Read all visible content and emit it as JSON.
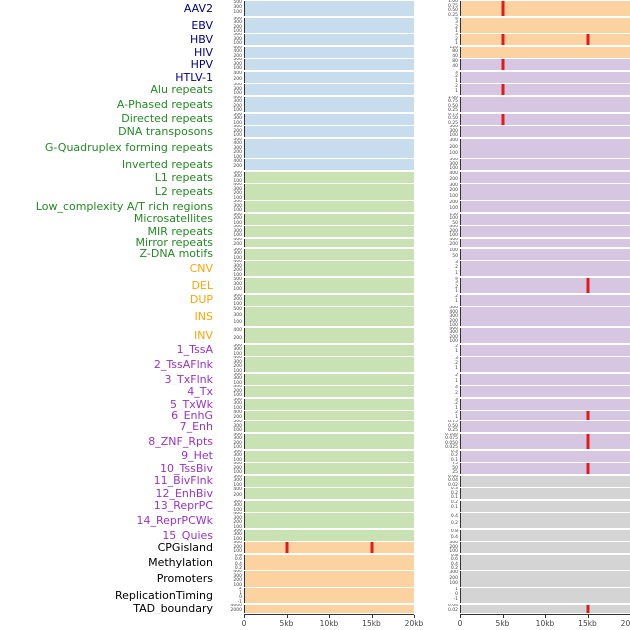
{
  "colors": {
    "label": {
      "virus": "#00008B",
      "repeat": "#228B22",
      "sv": "#FFA500",
      "chromatin": "#9932CC",
      "other": "#000000"
    },
    "fill": {
      "blue": "#c7dcec",
      "green": "#c9e2b3",
      "orange": "#fcd2a1",
      "purple": "#d6c6e1",
      "gray": "#d4d4d4"
    },
    "marker": "#e31a1c"
  },
  "chart_data": {
    "type": "area",
    "title": "",
    "xlabel": "",
    "x_range_kb": [
      0,
      20
    ],
    "x_tick_labels": [
      "0",
      "5kb",
      "10kb",
      "15kb",
      "20kb"
    ],
    "legend": "none",
    "tracks": [
      {
        "label": "AAV2",
        "group": "virus",
        "left": {
          "fill": "blue",
          "yticks": [
            "500",
            "300",
            "100"
          ],
          "markers_kb": []
        },
        "right": {
          "fill": "orange",
          "yticks": [
            "1.00",
            "0.75",
            "0.50",
            "0.25"
          ],
          "markers_kb": [
            5
          ]
        }
      },
      {
        "label": "EBV",
        "group": "virus",
        "left": {
          "fill": "blue",
          "yticks": [
            "400",
            "300",
            "200",
            "100"
          ],
          "markers_kb": []
        },
        "right": {
          "fill": "orange",
          "yticks": [
            "4",
            "3",
            "2",
            "1"
          ],
          "markers_kb": []
        }
      },
      {
        "label": "HBV",
        "group": "virus",
        "left": {
          "fill": "blue",
          "yticks": [
            "500",
            "300",
            "100"
          ],
          "markers_kb": []
        },
        "right": {
          "fill": "orange",
          "yticks": [
            "3",
            "2",
            "1"
          ],
          "markers_kb": [
            5,
            15
          ]
        }
      },
      {
        "label": "HIV",
        "group": "virus",
        "left": {
          "fill": "blue",
          "yticks": [
            "600",
            "400",
            "200"
          ],
          "markers_kb": []
        },
        "right": {
          "fill": "orange",
          "yticks": [
            "120",
            "80",
            "40"
          ],
          "markers_kb": []
        }
      },
      {
        "label": "HPV",
        "group": "virus",
        "left": {
          "fill": "blue",
          "yticks": [
            "500",
            "300",
            "100"
          ],
          "markers_kb": []
        },
        "right": {
          "fill": "purple",
          "yticks": [
            "80",
            "40"
          ],
          "markers_kb": [
            5
          ]
        }
      },
      {
        "label": "HTLV-1",
        "group": "virus",
        "left": {
          "fill": "blue",
          "yticks": [
            "400",
            "200"
          ],
          "markers_kb": []
        },
        "right": {
          "fill": "purple",
          "yticks": [
            "3",
            "2",
            "1"
          ],
          "markers_kb": []
        }
      },
      {
        "label": "Alu repeats",
        "group": "repeat",
        "left": {
          "fill": "blue",
          "yticks": [
            "500",
            "300",
            "100"
          ],
          "markers_kb": []
        },
        "right": {
          "fill": "purple",
          "yticks": [
            "2",
            "1"
          ],
          "markers_kb": [
            5
          ]
        }
      },
      {
        "label": "A-Phased repeats",
        "group": "repeat",
        "left": {
          "fill": "blue",
          "yticks": [
            "400",
            "300",
            "200",
            "100"
          ],
          "markers_kb": []
        },
        "right": {
          "fill": "purple",
          "yticks": [
            "1.00",
            "0.75",
            "0.50",
            "0.25"
          ],
          "markers_kb": []
        }
      },
      {
        "label": "Directed repeats",
        "group": "repeat",
        "left": {
          "fill": "blue",
          "yticks": [
            "500",
            "300",
            "100"
          ],
          "markers_kb": []
        },
        "right": {
          "fill": "purple",
          "yticks": [
            "0.75",
            "0.50",
            "0.25"
          ],
          "markers_kb": [
            5
          ]
        }
      },
      {
        "label": "DNA transposons",
        "group": "repeat",
        "left": {
          "fill": "blue",
          "yticks": [
            "300",
            "200",
            "100"
          ],
          "markers_kb": []
        },
        "right": {
          "fill": "purple",
          "yticks": [
            "500",
            "300",
            "100"
          ],
          "markers_kb": []
        }
      },
      {
        "label": "G-Quadruplex forming repeats",
        "group": "repeat",
        "left": {
          "fill": "blue",
          "yticks": [
            "500",
            "400",
            "300",
            "200",
            "100"
          ],
          "markers_kb": []
        },
        "right": {
          "fill": "purple",
          "yticks": [
            "300",
            "200",
            "100"
          ],
          "markers_kb": []
        }
      },
      {
        "label": "Inverted repeats",
        "group": "repeat",
        "left": {
          "fill": "blue",
          "yticks": [
            "400",
            "200"
          ],
          "markers_kb": []
        },
        "right": {
          "fill": "purple",
          "yticks": [
            "500",
            "300",
            "100"
          ],
          "markers_kb": []
        }
      },
      {
        "label": "L1 repeats",
        "group": "repeat",
        "left": {
          "fill": "green",
          "yticks": [
            "500",
            "300",
            "100"
          ],
          "markers_kb": []
        },
        "right": {
          "fill": "purple",
          "yticks": [
            "400",
            "200"
          ],
          "markers_kb": []
        }
      },
      {
        "label": "L2 repeats",
        "group": "repeat",
        "left": {
          "fill": "green",
          "yticks": [
            "400",
            "300",
            "200",
            "100"
          ],
          "markers_kb": []
        },
        "right": {
          "fill": "purple",
          "yticks": [
            "300",
            "200",
            "100"
          ],
          "markers_kb": []
        }
      },
      {
        "label": "Low_complexity A/T rich regions",
        "group": "repeat",
        "left": {
          "fill": "green",
          "yticks": [
            "500",
            "300",
            "100"
          ],
          "markers_kb": []
        },
        "right": {
          "fill": "purple",
          "yticks": [
            "200",
            "100"
          ],
          "markers_kb": []
        }
      },
      {
        "label": "Microsatellites",
        "group": "repeat",
        "left": {
          "fill": "green",
          "yticks": [
            "300",
            "200",
            "100"
          ],
          "markers_kb": []
        },
        "right": {
          "fill": "purple",
          "yticks": [
            "150",
            "100",
            "50"
          ],
          "markers_kb": []
        }
      },
      {
        "label": "MIR repeats",
        "group": "repeat",
        "left": {
          "fill": "green",
          "yticks": [
            "500",
            "300",
            "100"
          ],
          "markers_kb": []
        },
        "right": {
          "fill": "purple",
          "yticks": [
            "300",
            "200",
            "100"
          ],
          "markers_kb": []
        }
      },
      {
        "label": "Mirror repeats",
        "group": "repeat",
        "left": {
          "fill": "green",
          "yticks": [
            "400",
            "200"
          ],
          "markers_kb": []
        },
        "right": {
          "fill": "purple",
          "yticks": [
            "400",
            "200"
          ],
          "markers_kb": []
        }
      },
      {
        "label": "Z-DNA motifs",
        "group": "repeat",
        "left": {
          "fill": "green",
          "yticks": [
            "500",
            "300",
            "100"
          ],
          "markers_kb": []
        },
        "right": {
          "fill": "purple",
          "yticks": [
            "100",
            "50"
          ],
          "markers_kb": []
        }
      },
      {
        "label": "CNV",
        "group": "sv",
        "left": {
          "fill": "green",
          "yticks": [
            "400",
            "300",
            "200",
            "100"
          ],
          "markers_kb": []
        },
        "right": {
          "fill": "purple",
          "yticks": [
            "3",
            "2",
            "1"
          ],
          "markers_kb": []
        }
      },
      {
        "label": "DEL",
        "group": "sv",
        "left": {
          "fill": "green",
          "yticks": [
            "500",
            "300",
            "100"
          ],
          "markers_kb": []
        },
        "right": {
          "fill": "purple",
          "yticks": [
            "4",
            "3",
            "2",
            "1"
          ],
          "markers_kb": [
            15
          ]
        }
      },
      {
        "label": "DUP",
        "group": "sv",
        "left": {
          "fill": "green",
          "yticks": [
            "300",
            "200",
            "100"
          ],
          "markers_kb": []
        },
        "right": {
          "fill": "purple",
          "yticks": [
            "2",
            "1"
          ],
          "markers_kb": []
        }
      },
      {
        "label": "INS",
        "group": "sv",
        "left": {
          "fill": "green",
          "yticks": [
            "500",
            "300",
            "100"
          ],
          "markers_kb": []
        },
        "right": {
          "fill": "purple",
          "yticks": [
            "500",
            "400",
            "300",
            "200",
            "100"
          ],
          "markers_kb": []
        }
      },
      {
        "label": "INV",
        "group": "sv",
        "left": {
          "fill": "green",
          "yticks": [
            "400",
            "200"
          ],
          "markers_kb": []
        },
        "right": {
          "fill": "purple",
          "yticks": [
            "400",
            "300",
            "200",
            "100"
          ],
          "markers_kb": []
        }
      },
      {
        "label": "1_TssA",
        "group": "chromatin",
        "left": {
          "fill": "green",
          "yticks": [
            "500",
            "300",
            "100"
          ],
          "markers_kb": []
        },
        "right": {
          "fill": "purple",
          "yticks": [
            "2",
            "1"
          ],
          "markers_kb": []
        }
      },
      {
        "label": "2_TssAFlnk",
        "group": "chromatin",
        "left": {
          "fill": "green",
          "yticks": [
            "400",
            "300",
            "200",
            "100"
          ],
          "markers_kb": []
        },
        "right": {
          "fill": "purple",
          "yticks": [
            "3",
            "2",
            "1"
          ],
          "markers_kb": []
        }
      },
      {
        "label": "3_TxFlnk",
        "group": "chromatin",
        "left": {
          "fill": "green",
          "yticks": [
            "500",
            "300",
            "100"
          ],
          "markers_kb": []
        },
        "right": {
          "fill": "purple",
          "yticks": [
            "2",
            "1"
          ],
          "markers_kb": []
        }
      },
      {
        "label": "4_Tx",
        "group": "chromatin",
        "left": {
          "fill": "green",
          "yticks": [
            "300",
            "200",
            "100"
          ],
          "markers_kb": []
        },
        "right": {
          "fill": "purple",
          "yticks": [
            "4",
            "2"
          ],
          "markers_kb": []
        }
      },
      {
        "label": "5_TxWk",
        "group": "chromatin",
        "left": {
          "fill": "green",
          "yticks": [
            "500",
            "300",
            "100"
          ],
          "markers_kb": []
        },
        "right": {
          "fill": "purple",
          "yticks": [
            "3",
            "2",
            "1"
          ],
          "markers_kb": []
        }
      },
      {
        "label": "6_EnhG",
        "group": "chromatin",
        "left": {
          "fill": "green",
          "yticks": [
            "400",
            "200"
          ],
          "markers_kb": []
        },
        "right": {
          "fill": "purple",
          "yticks": [
            "2",
            "1"
          ],
          "markers_kb": [
            15
          ]
        }
      },
      {
        "label": "7_Enh",
        "group": "chromatin",
        "left": {
          "fill": "green",
          "yticks": [
            "500",
            "300",
            "100"
          ],
          "markers_kb": []
        },
        "right": {
          "fill": "purple",
          "yticks": [
            "0.75",
            "0.50",
            "0.25"
          ],
          "markers_kb": []
        }
      },
      {
        "label": "8_ZNF_Rpts",
        "group": "chromatin",
        "left": {
          "fill": "green",
          "yticks": [
            "400",
            "300",
            "200",
            "100"
          ],
          "markers_kb": []
        },
        "right": {
          "fill": "purple",
          "yticks": [
            "0.100",
            "0.075",
            "0.050",
            "0.025"
          ],
          "markers_kb": [
            15
          ]
        }
      },
      {
        "label": "9_Het",
        "group": "chromatin",
        "left": {
          "fill": "green",
          "yticks": [
            "500",
            "300",
            "100"
          ],
          "markers_kb": []
        },
        "right": {
          "fill": "purple",
          "yticks": [
            "0.3",
            "0.2",
            "0.1"
          ],
          "markers_kb": []
        }
      },
      {
        "label": "10_TssBiv",
        "group": "chromatin",
        "left": {
          "fill": "green",
          "yticks": [
            "300",
            "200",
            "100"
          ],
          "markers_kb": []
        },
        "right": {
          "fill": "purple",
          "yticks": [
            "75",
            "50",
            "25"
          ],
          "markers_kb": [
            15
          ]
        }
      },
      {
        "label": "11_BivFlnk",
        "group": "chromatin",
        "left": {
          "fill": "green",
          "yticks": [
            "500",
            "300",
            "100"
          ],
          "markers_kb": []
        },
        "right": {
          "fill": "gray",
          "yticks": [
            "0.06",
            "0.04",
            "0.02"
          ],
          "markers_kb": []
        }
      },
      {
        "label": "12_EnhBiv",
        "group": "chromatin",
        "left": {
          "fill": "green",
          "yticks": [
            "400",
            "200"
          ],
          "markers_kb": []
        },
        "right": {
          "fill": "gray",
          "yticks": [
            "0.3",
            "0.2",
            "0.1"
          ],
          "markers_kb": []
        }
      },
      {
        "label": "13_ReprPC",
        "group": "chromatin",
        "left": {
          "fill": "green",
          "yticks": [
            "500",
            "300",
            "100"
          ],
          "markers_kb": []
        },
        "right": {
          "fill": "gray",
          "yticks": [
            "0.2",
            "0.1"
          ],
          "markers_kb": []
        }
      },
      {
        "label": "14_ReprPCWk",
        "group": "chromatin",
        "left": {
          "fill": "green",
          "yticks": [
            "400",
            "300",
            "200",
            "100"
          ],
          "markers_kb": []
        },
        "right": {
          "fill": "gray",
          "yticks": [
            "0.4",
            "0.2"
          ],
          "markers_kb": []
        }
      },
      {
        "label": "15_Quies",
        "group": "chromatin",
        "left": {
          "fill": "green",
          "yticks": [
            "500",
            "300",
            "100"
          ],
          "markers_kb": []
        },
        "right": {
          "fill": "gray",
          "yticks": [
            "0.8",
            "0.4"
          ],
          "markers_kb": []
        }
      },
      {
        "label": "CPGisland",
        "group": "other",
        "left": {
          "fill": "orange",
          "yticks": [
            "300",
            "200",
            "100"
          ],
          "markers_kb": [
            5,
            15
          ]
        },
        "right": {
          "fill": "gray",
          "yticks": [
            "300",
            "200",
            "100"
          ],
          "markers_kb": []
        }
      },
      {
        "label": "Methylation",
        "group": "other",
        "left": {
          "fill": "orange",
          "yticks": [
            "0.8",
            "0.6",
            "0.4",
            "0.2"
          ],
          "markers_kb": []
        },
        "right": {
          "fill": "gray",
          "yticks": [
            "0.8",
            "0.6",
            "0.4",
            "0.2"
          ],
          "markers_kb": []
        }
      },
      {
        "label": "Promoters",
        "group": "other",
        "left": {
          "fill": "orange",
          "yticks": [
            "400",
            "300",
            "200",
            "100"
          ],
          "markers_kb": []
        },
        "right": {
          "fill": "gray",
          "yticks": [
            "300",
            "200",
            "100"
          ],
          "markers_kb": []
        }
      },
      {
        "label": "ReplicationTiming",
        "group": "other",
        "left": {
          "fill": "orange",
          "yticks": [
            "2",
            "1",
            "0",
            "-1"
          ],
          "markers_kb": []
        },
        "right": {
          "fill": "gray",
          "yticks": [
            "1",
            "0",
            "-1"
          ],
          "markers_kb": []
        }
      },
      {
        "label": "TAD_boundary",
        "group": "other",
        "left": {
          "fill": "orange",
          "yticks": [
            "4000",
            "2000"
          ],
          "markers_kb": []
        },
        "right": {
          "fill": "gray",
          "yticks": [
            "0.04",
            "0.02"
          ],
          "markers_kb": [
            15
          ]
        }
      }
    ]
  }
}
